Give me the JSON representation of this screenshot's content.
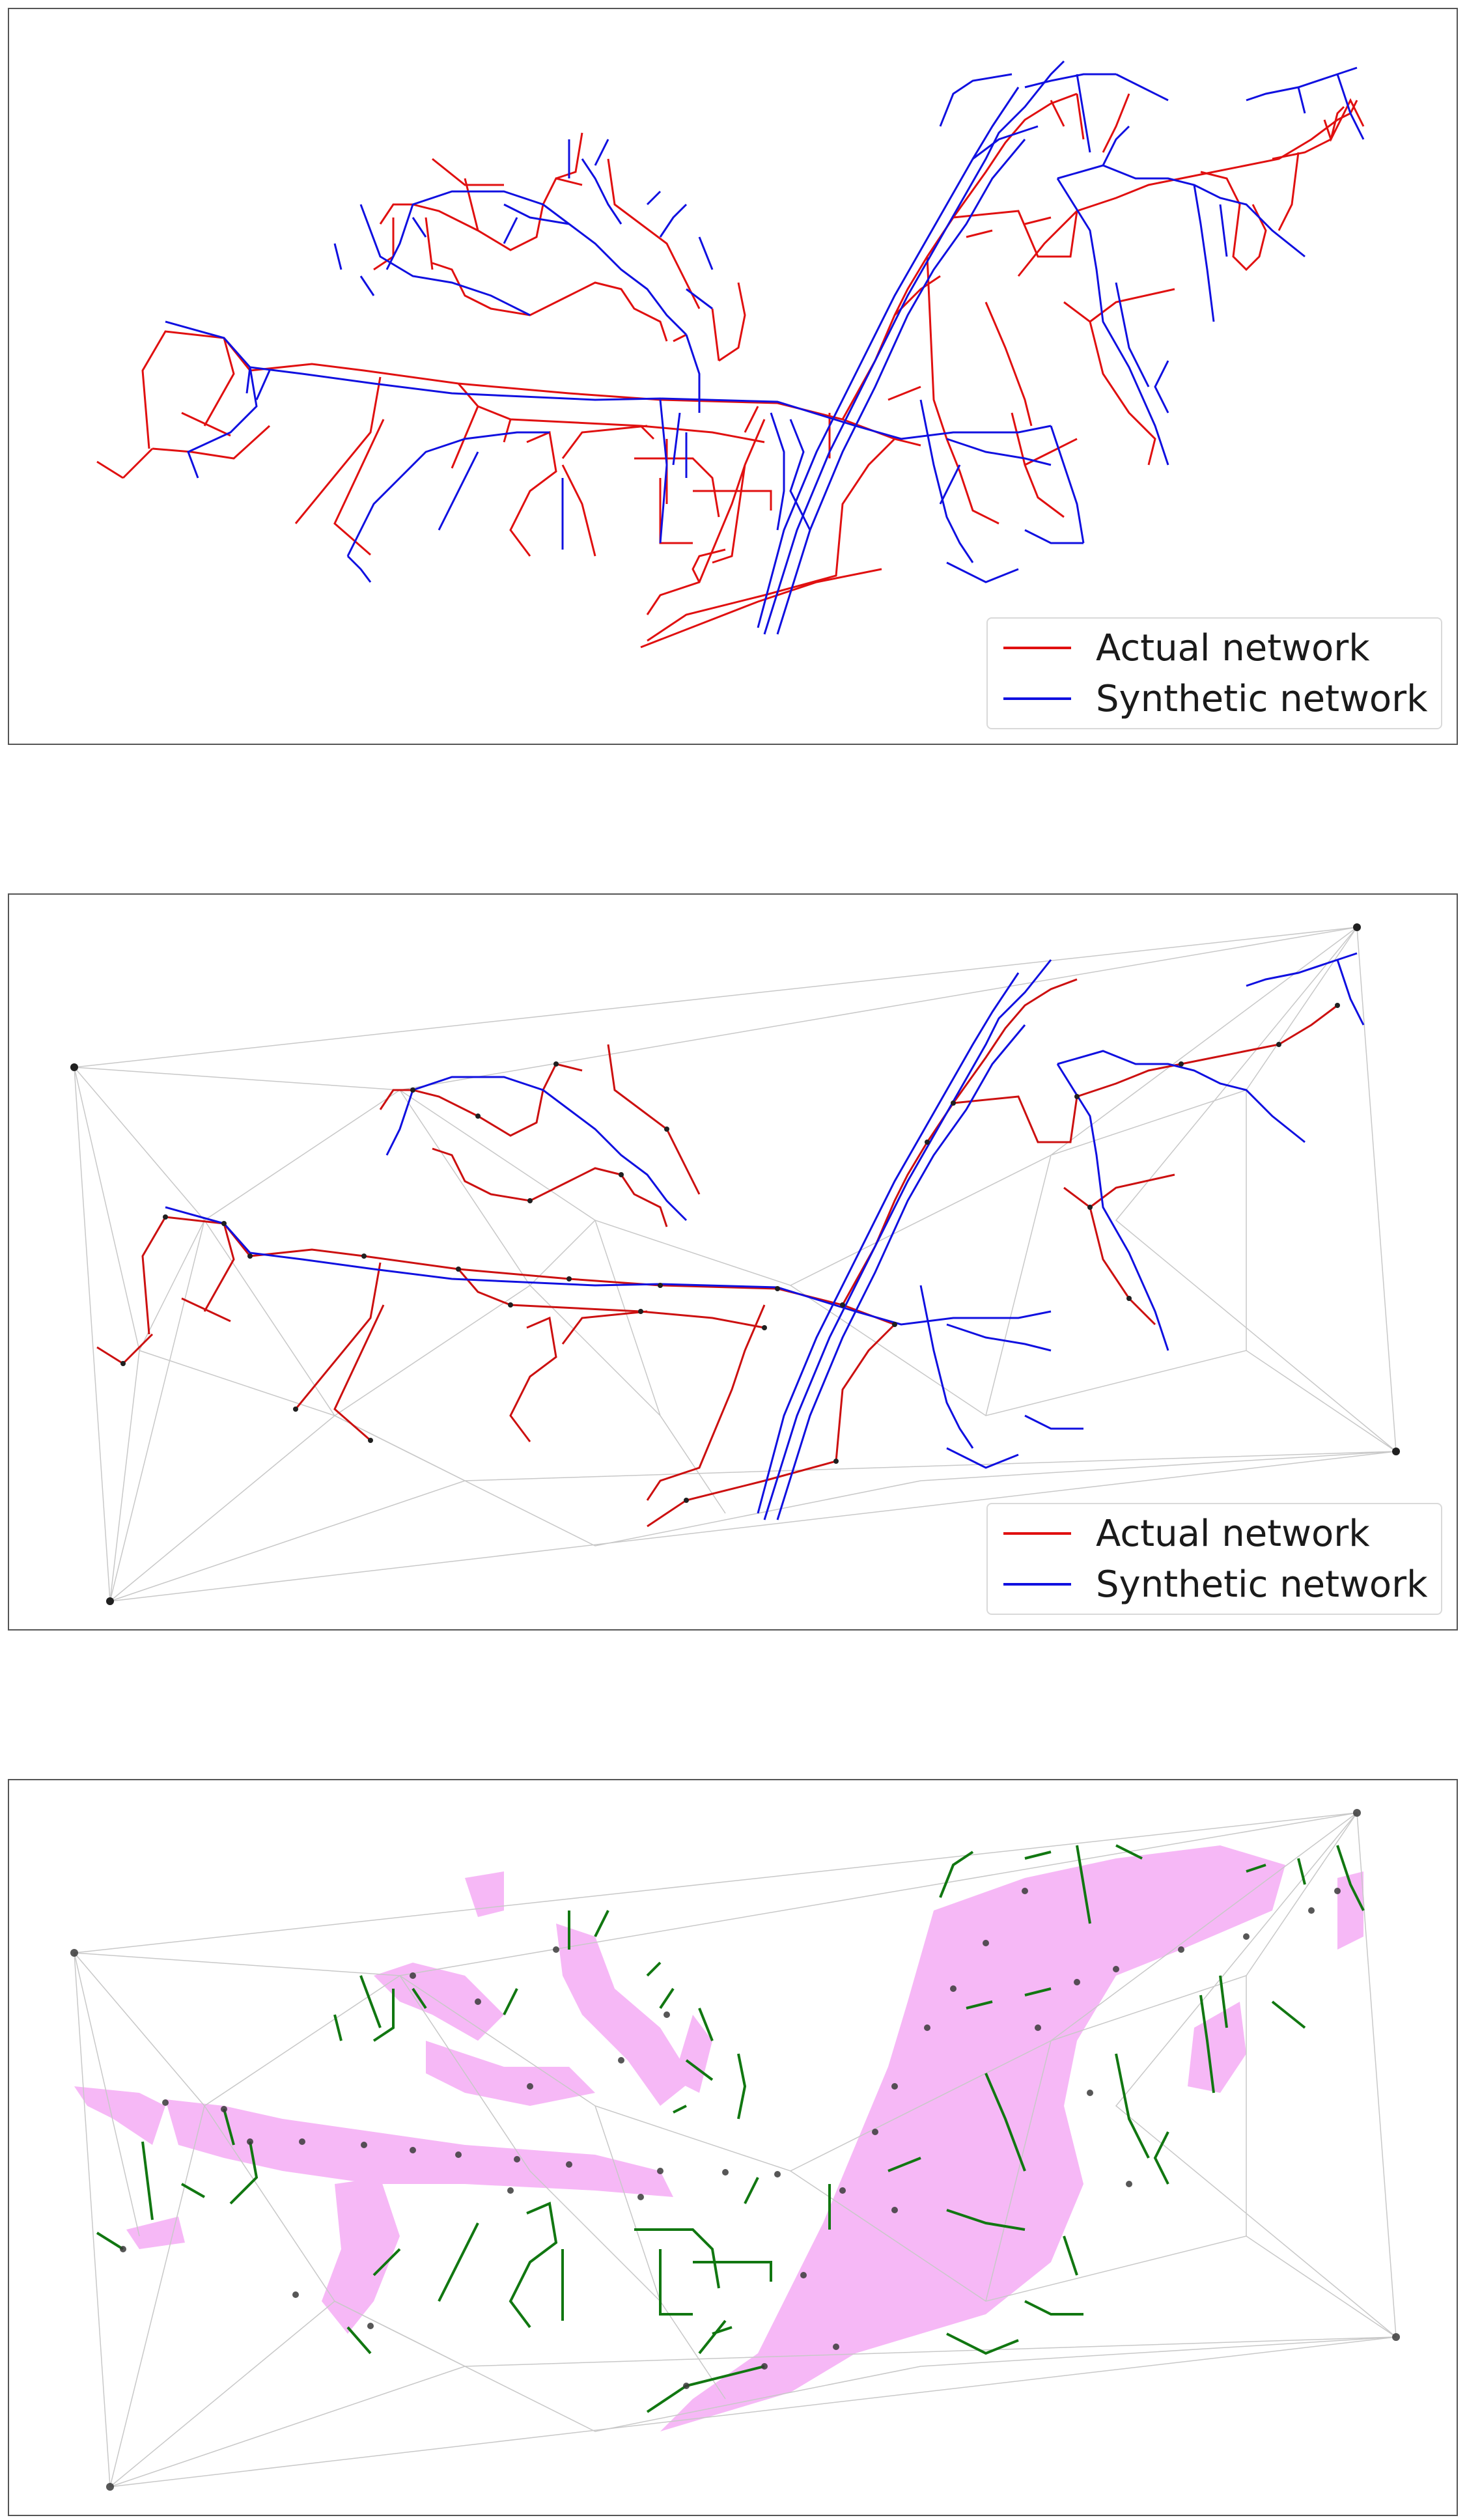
{
  "colors": {
    "actual": "#e01010",
    "synthetic": "#1010e0",
    "delaunay": "#c8c8c8",
    "node": "#202020",
    "green_edge": "#117711",
    "mismatch_fill": "#f6b8f6"
  },
  "legend": {
    "actual_label": "Actual network",
    "synthetic_label": "Synthetic network"
  },
  "panels": [
    {
      "id": "panel1",
      "shows_legend": true,
      "content": "actual and synthetic network lines"
    },
    {
      "id": "panel2",
      "shows_legend": true,
      "content": "networks with nodes over Delaunay triangulation"
    },
    {
      "id": "panel3",
      "shows_legend": false,
      "content": "unmatched edges with mismatch regions over triangulation"
    }
  ]
}
